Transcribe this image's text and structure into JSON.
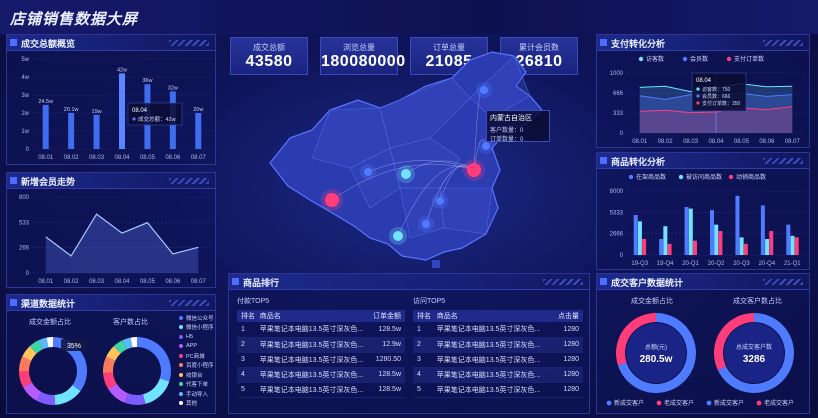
{
  "title": "店铺销售数据大屏",
  "colors": {
    "blue": "#4e7bff",
    "cyan": "#6fe3ff",
    "pink": "#ff3d7a",
    "panel": "#0f1458"
  },
  "kpis": [
    {
      "label": "成交总额",
      "value": "43580"
    },
    {
      "label": "浏览总量",
      "value": "180080000"
    },
    {
      "label": "订单总量",
      "value": "21085"
    },
    {
      "label": "累计会员数",
      "value": "26810"
    }
  ],
  "panels": {
    "deal": "成交总额概览",
    "member": "新增会员走势",
    "channel": "渠道数据统计",
    "pay": "支付转化分析",
    "goods": "商品转化分析",
    "rank": "商品排行",
    "customer": "成交客户数据统计"
  },
  "chart_data": [
    {
      "type": "bar",
      "categories": [
        "08.01",
        "08.02",
        "08.03",
        "08.04",
        "08.05",
        "08.06",
        "08.07"
      ],
      "values": [
        24.5,
        20.1,
        19,
        42,
        36,
        32,
        20
      ],
      "data_labels": [
        "24.5w",
        "20.1w",
        "19w",
        "42w",
        "36w",
        "32w",
        "20w"
      ],
      "ylabel_ticks": [
        "0",
        "1w",
        "2w",
        "3w",
        "4w",
        "5w"
      ],
      "ylim": [
        0,
        50
      ],
      "tooltip": {
        "date": "08.04",
        "text": "成交总额：42w"
      }
    },
    {
      "type": "area",
      "categories": [
        "08.01",
        "08.02",
        "08.03",
        "08.04",
        "08.05",
        "08.06",
        "08.07"
      ],
      "values": [
        380,
        180,
        620,
        420,
        530,
        200,
        270
      ],
      "y_ticks": [
        "0",
        "266",
        "533",
        "800"
      ],
      "ylim": [
        0,
        800
      ]
    },
    {
      "type": "line",
      "categories": [
        "08.01",
        "08.02",
        "08.03",
        "08.04",
        "08.05",
        "08.06",
        "08.07"
      ],
      "series": [
        {
          "name": "访客数",
          "values": [
            760,
            780,
            690,
            750,
            820,
            770,
            780
          ]
        },
        {
          "name": "会员数",
          "values": [
            620,
            560,
            640,
            666,
            660,
            610,
            640
          ]
        },
        {
          "name": "支付订单数",
          "values": [
            360,
            380,
            340,
            350,
            420,
            390,
            440
          ]
        }
      ],
      "y_ticks": [
        "0",
        "333",
        "666",
        "1000"
      ],
      "ylim": [
        0,
        1000
      ],
      "tooltip": {
        "date": "08.04",
        "lines": [
          "访客数：750",
          "会员数：666",
          "支付订单数：350"
        ]
      }
    },
    {
      "type": "bar",
      "categories": [
        "19-Q3",
        "19-Q4",
        "20-Q1",
        "20-Q2",
        "20-Q3",
        "20-Q4",
        "21-Q1"
      ],
      "series": [
        {
          "name": "在架商品数",
          "values": [
            5000,
            2000,
            6000,
            5600,
            7400,
            6200,
            3800
          ]
        },
        {
          "name": "被访问商品数",
          "values": [
            4200,
            3600,
            5800,
            3800,
            2200,
            2000,
            2400
          ]
        },
        {
          "name": "动销商品数",
          "values": [
            2000,
            1400,
            1800,
            3000,
            1400,
            3000,
            2200
          ]
        }
      ],
      "y_ticks": [
        "0",
        "2666",
        "5333",
        "8000"
      ],
      "ylim": [
        0,
        8000
      ]
    },
    {
      "type": "pie",
      "title": "成交金额占比",
      "categories": [
        "微信公众号",
        "微信小程序",
        "H5",
        "APP",
        "PC商城",
        "百度小程序",
        "收银台",
        "代客下单",
        "手动导入",
        "其他"
      ],
      "values": [
        35,
        14,
        9,
        9,
        8,
        7,
        6,
        5,
        4,
        3
      ],
      "badge": "35%"
    },
    {
      "type": "pie",
      "title": "客户数占比",
      "categories": [
        "微信公众号",
        "微信小程序",
        "H5",
        "APP",
        "PC商城",
        "百度小程序",
        "收银台",
        "代客下单",
        "手动导入",
        "其他"
      ],
      "values": [
        30,
        16,
        10,
        10,
        8,
        8,
        6,
        5,
        4,
        3
      ]
    },
    {
      "type": "pie",
      "title": "成交金额占比",
      "categories": [
        "新成交客户",
        "老成交客户"
      ],
      "values": [
        70,
        30
      ],
      "center_label": "总额(元)",
      "center_value": "280.5w"
    },
    {
      "type": "pie",
      "title": "成交客户数占比",
      "categories": [
        "新成交客户",
        "老成交客户"
      ],
      "values": [
        68,
        32
      ],
      "center_label": "总成交客户数",
      "center_value": "3286"
    }
  ],
  "channel_legend": [
    "微信公众号",
    "微信小程序",
    "H5",
    "APP",
    "PC商城",
    "百度小程序",
    "收银台",
    "代客下单",
    "手动导入",
    "其他"
  ],
  "channel_colors": [
    "#4e7bff",
    "#6fe3ff",
    "#7a5cff",
    "#b65cff",
    "#ff3d7a",
    "#ff7a5c",
    "#ffc45c",
    "#3dd6a1",
    "#5cb8ff",
    "#ffffff"
  ],
  "map": {
    "tooltip_title": "内蒙古自治区",
    "tooltip_lines": [
      "客户数量：0",
      "订单数量：0"
    ]
  },
  "rank": {
    "left_title": "付款TOP5",
    "right_title": "访问TOP5",
    "left_headers": [
      "排名",
      "商品名",
      "订单金额"
    ],
    "right_headers": [
      "排名",
      "商品名",
      "点击量"
    ],
    "left_rows": [
      [
        "1",
        "苹果笔记本电脑13.5英寸深灰色...",
        "128.5w"
      ],
      [
        "2",
        "苹果笔记本电脑13.5英寸深灰色...",
        "12.9w"
      ],
      [
        "3",
        "苹果笔记本电脑13.5英寸深灰色...",
        "1280.50"
      ],
      [
        "4",
        "苹果笔记本电脑13.5英寸深灰色...",
        "128.5w"
      ],
      [
        "5",
        "苹果笔记本电脑13.5英寸深灰色...",
        "128.5w"
      ]
    ],
    "right_rows": [
      [
        "1",
        "苹果笔记本电脑13.5英寸深灰色...",
        "1280"
      ],
      [
        "2",
        "苹果笔记本电脑13.5英寸深灰色...",
        "1280"
      ],
      [
        "3",
        "苹果笔记本电脑13.5英寸深灰色...",
        "1280"
      ],
      [
        "4",
        "苹果笔记本电脑13.5英寸深灰色...",
        "1280"
      ],
      [
        "5",
        "苹果笔记本电脑13.5英寸深灰色...",
        "1280"
      ]
    ]
  }
}
